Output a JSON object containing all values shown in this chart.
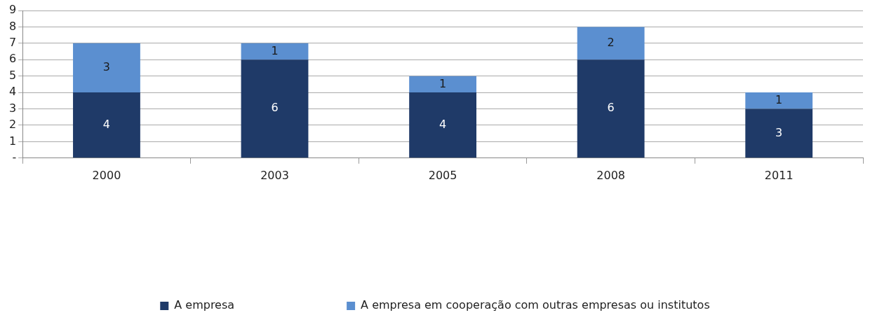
{
  "chart_data": {
    "type": "bar",
    "stacked": true,
    "categories": [
      "2000",
      "2003",
      "2005",
      "2008",
      "2011"
    ],
    "series": [
      {
        "name": "A empresa",
        "color": "#1f3a68",
        "values": [
          4,
          6,
          4,
          6,
          3
        ]
      },
      {
        "name": "A empresa em cooperação com outras empresas ou institutos",
        "color": "#5b8fd0",
        "values": [
          3,
          1,
          1,
          2,
          1
        ]
      }
    ],
    "ylim": [
      0,
      9
    ],
    "yticks": [
      {
        "value": 0,
        "label": "-"
      },
      1,
      2,
      3,
      4,
      5,
      6,
      7,
      8,
      9
    ],
    "grid": "y",
    "legend": "bottom",
    "data_labels": true
  }
}
